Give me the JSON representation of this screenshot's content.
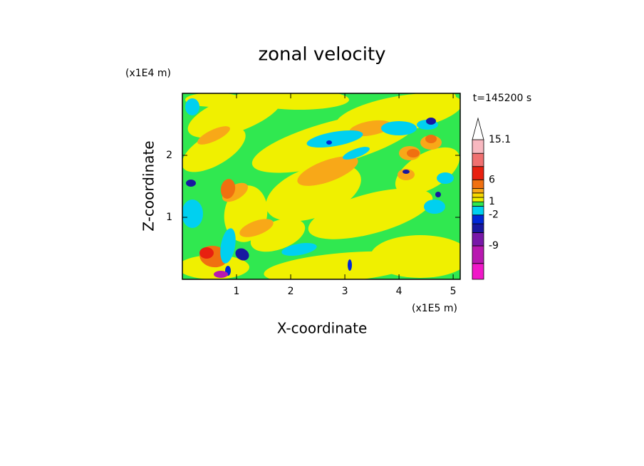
{
  "chart_data": {
    "type": "contour",
    "title": "zonal velocity",
    "xlabel": "X-coordinate",
    "ylabel": "Z-coordinate",
    "x_unit_label": "(x1E5 m)",
    "y_unit_label": "(x1E4 m)",
    "time_label": "t=145200 s",
    "xlim": [
      0,
      5.13
    ],
    "xticks": [
      1,
      2,
      3,
      4,
      5
    ],
    "ylim": [
      0,
      3
    ],
    "yticks": [
      1,
      2
    ],
    "colorbar": {
      "bounds": [
        -16.6,
        -13,
        -9,
        -6,
        -4,
        -2,
        0,
        1,
        2,
        3,
        4,
        6,
        9,
        12,
        15.1
      ],
      "colors": [
        "#f018c8",
        "#b818b0",
        "#7818a8",
        "#1818a0",
        "#0028d8",
        "#00d0f0",
        "#30e850",
        "#f0f000",
        "#f8d800",
        "#f8a818",
        "#f07010",
        "#e82010",
        "#f07070",
        "#f8b8c0"
      ],
      "ticks": [
        -9,
        -2,
        1,
        6,
        15.1
      ]
    }
  }
}
